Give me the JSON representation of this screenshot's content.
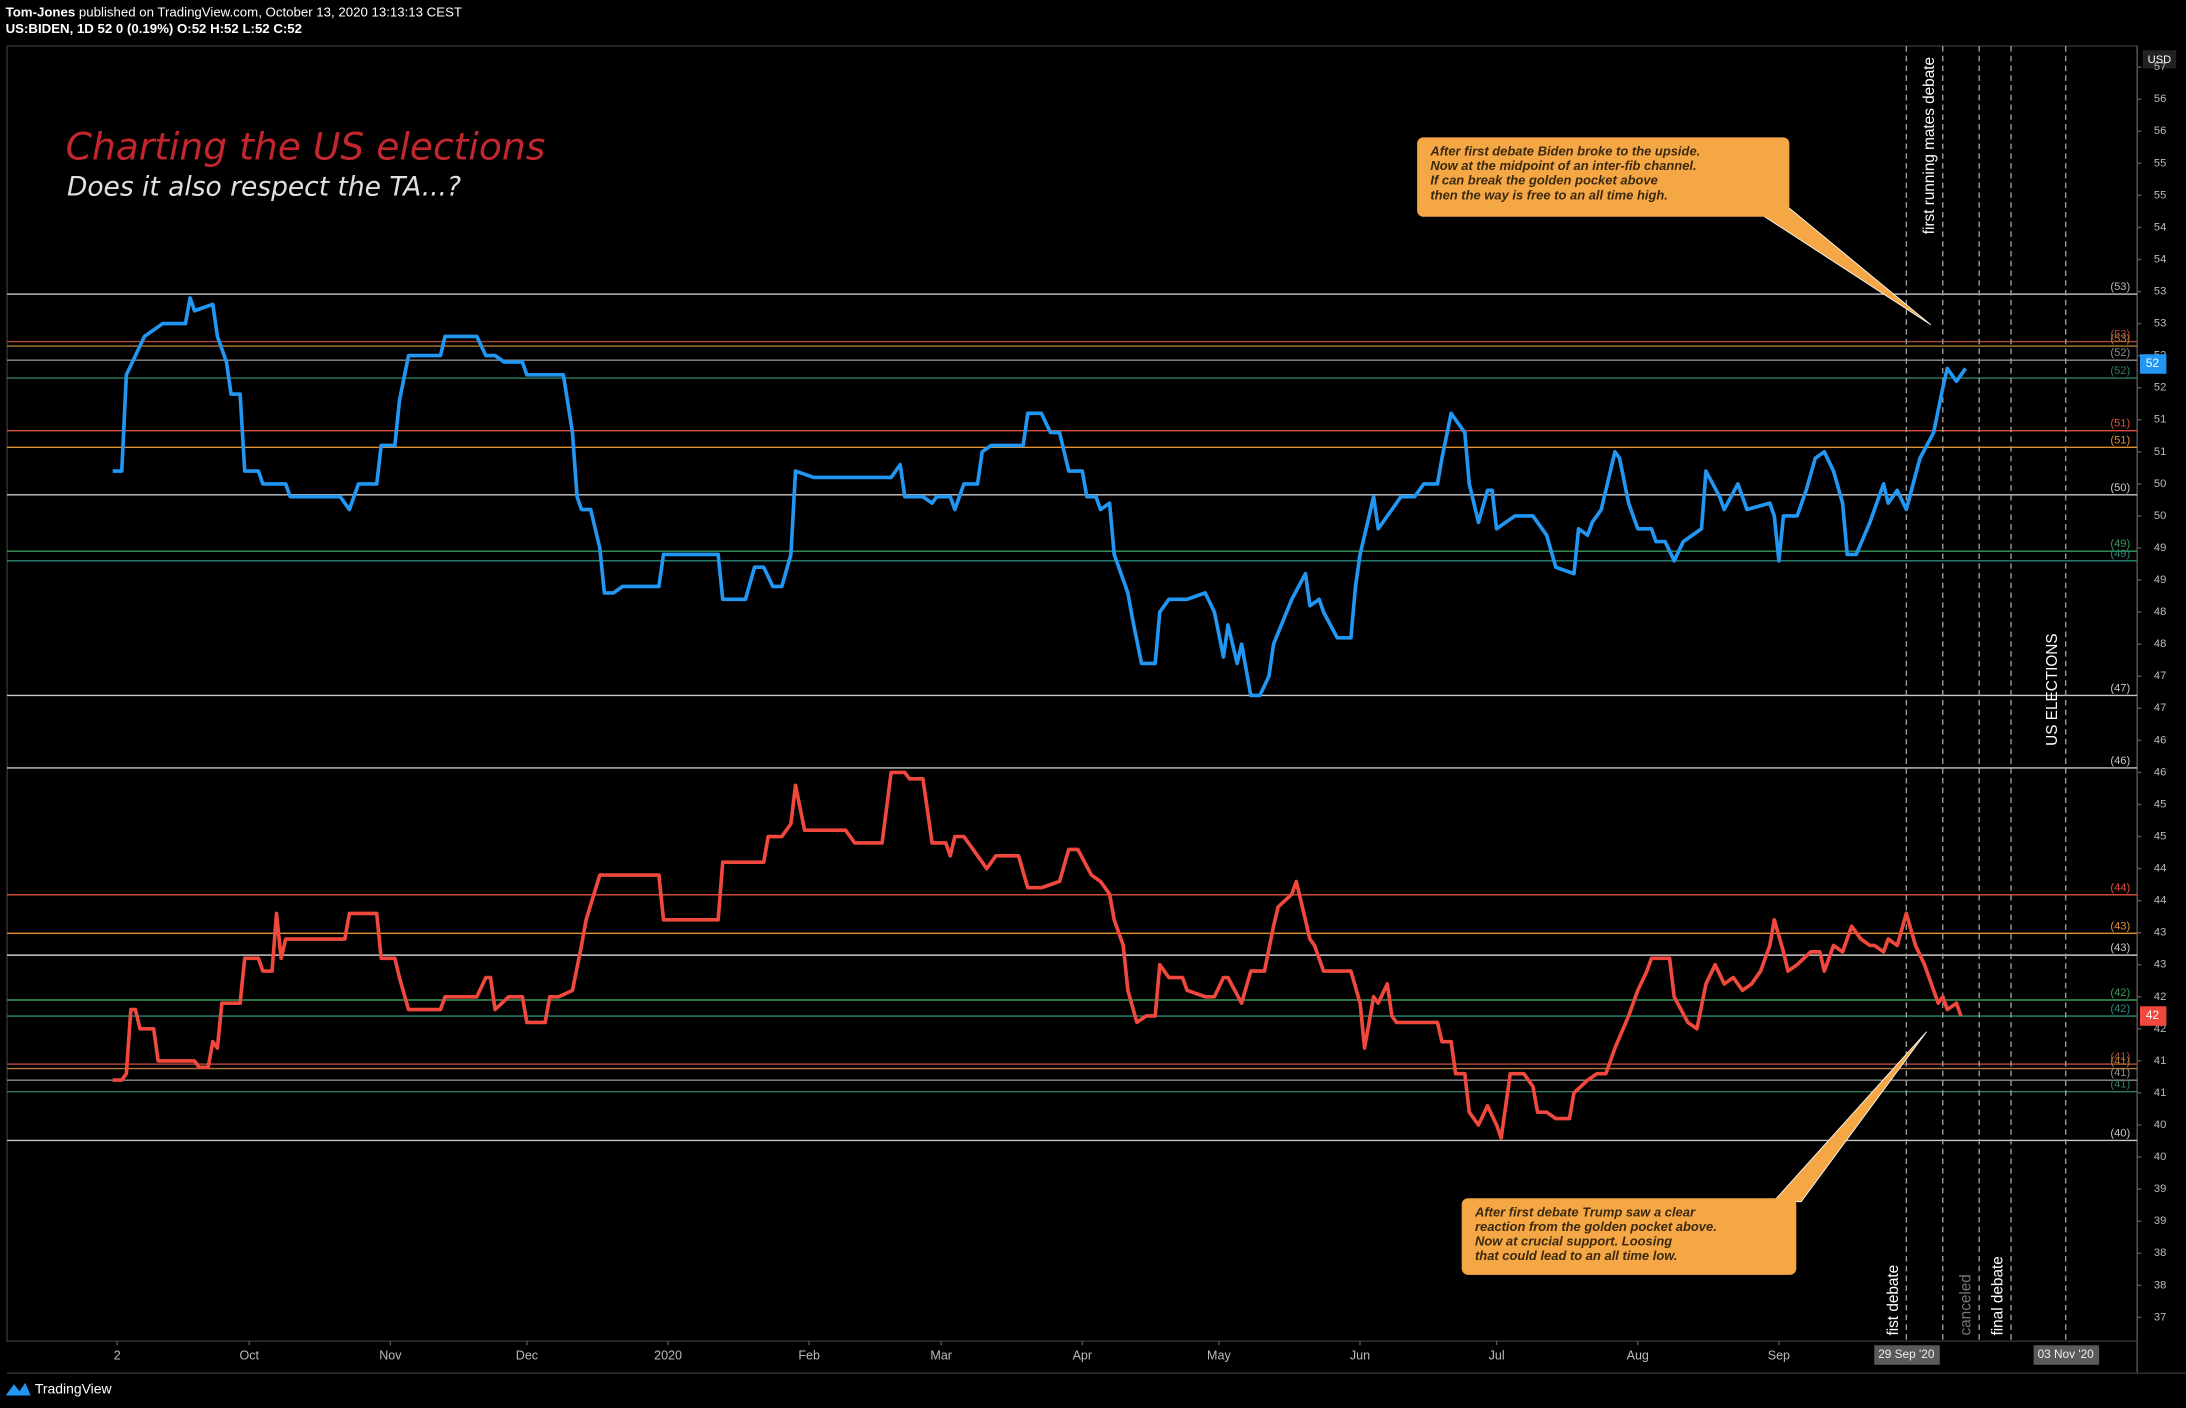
{
  "chart_data": {
    "type": "line",
    "header": {
      "author": "Tom-Jones",
      "published": "published on TradingView.com, October 13, 2020 13:13:13 CEST",
      "symbol": "US:BIDEN, 1D  52  0 (0.19%)  O:52 H:52 L:52 C:52"
    },
    "title": "Charting the US elections",
    "subtitle": "Does it also respect the TA...?",
    "currency": "USD",
    "brand": "TradingView",
    "xlim": [
      -24.2,
      443.7
    ],
    "xticks": [
      {
        "value": 0,
        "label": "2"
      },
      {
        "value": 29,
        "label": "Oct"
      },
      {
        "value": 60,
        "label": "Nov"
      },
      {
        "value": 90,
        "label": "Dec"
      },
      {
        "value": 121,
        "label": "2020"
      },
      {
        "value": 152,
        "label": "Feb"
      },
      {
        "value": 181,
        "label": "Mar"
      },
      {
        "value": 212,
        "label": "Apr"
      },
      {
        "value": 242,
        "label": "May"
      },
      {
        "value": 273,
        "label": "Jun"
      },
      {
        "value": 303,
        "label": "Jul"
      },
      {
        "value": 334,
        "label": "Aug"
      },
      {
        "value": 365,
        "label": "Sep"
      }
    ],
    "ylim": [
      37.13,
      57.33
    ],
    "yticks": [
      57,
      {
        "value": 56.5,
        "label": "56"
      },
      56,
      {
        "value": 55.5,
        "label": "55"
      },
      55,
      {
        "value": 54.5,
        "label": "54"
      },
      54,
      {
        "value": 53.5,
        "label": "53"
      },
      53,
      {
        "value": 52.5,
        "label": "52"
      },
      52,
      {
        "value": 51.5,
        "label": "51"
      },
      51,
      {
        "value": 50.5,
        "label": "50"
      },
      50,
      {
        "value": 49.5,
        "label": "49"
      },
      49,
      {
        "value": 48.5,
        "label": "48"
      },
      48,
      {
        "value": 47.5,
        "label": "47"
      },
      47,
      {
        "value": 46.5,
        "label": "46"
      },
      46,
      {
        "value": 45.5,
        "label": "45"
      },
      45,
      {
        "value": 44.5,
        "label": "44"
      },
      44,
      {
        "value": 43.5,
        "label": "43"
      },
      43,
      {
        "value": 42.5,
        "label": "42"
      },
      42,
      {
        "value": 41.5,
        "label": "41"
      },
      41,
      {
        "value": 40.5,
        "label": "40"
      },
      40,
      {
        "value": 39.5,
        "label": "39"
      },
      39,
      {
        "value": 38.5,
        "label": "38"
      },
      38,
      {
        "value": 37.5,
        "label": "37"
      }
    ],
    "series": [
      {
        "color": "#2196f3",
        "x": [
          -1,
          1,
          2,
          6,
          10,
          15,
          16,
          17,
          21,
          22,
          24,
          25,
          27,
          28,
          31,
          32,
          37,
          38,
          49,
          51,
          53,
          57,
          58,
          61,
          62,
          64,
          71,
          72,
          79,
          81,
          83,
          85,
          89,
          90,
          94,
          95,
          98,
          100,
          101,
          102,
          104,
          106,
          107,
          109,
          111,
          119,
          120,
          132,
          133,
          138,
          140,
          142,
          144,
          146,
          148,
          149,
          153,
          170,
          172,
          173,
          177,
          179,
          180,
          183,
          184,
          186,
          189,
          190,
          192,
          199,
          200,
          203,
          205,
          207,
          209,
          212,
          213,
          215,
          216,
          218,
          219,
          222,
          223,
          225,
          228,
          229,
          231,
          235,
          239,
          241,
          243,
          244,
          246,
          247,
          249,
          251,
          253,
          254,
          258,
          261,
          262,
          264,
          265,
          268,
          271,
          272,
          273,
          276,
          277,
          280,
          282,
          285,
          287,
          290,
          291,
          293,
          294,
          296,
          297,
          299,
          301,
          302,
          303,
          307,
          311,
          314,
          316,
          320,
          321,
          323,
          324,
          326,
          329,
          330,
          332,
          334,
          337,
          338,
          340,
          342,
          344,
          348,
          349,
          352,
          353,
          356,
          358,
          363,
          364,
          365,
          366,
          369,
          371,
          373,
          375,
          377,
          379,
          380,
          382,
          385,
          388,
          389,
          391,
          393,
          396,
          399,
          401,
          402,
          404,
          406
        ],
        "values": [
          50.7,
          50.7,
          52.2,
          52.8,
          53.0,
          53.0,
          53.4,
          53.2,
          53.3,
          52.8,
          52.4,
          51.9,
          51.9,
          50.7,
          50.7,
          50.5,
          50.5,
          50.3,
          50.3,
          50.1,
          50.5,
          50.5,
          51.1,
          51.1,
          51.8,
          52.5,
          52.5,
          52.8,
          52.8,
          52.5,
          52.5,
          52.4,
          52.4,
          52.2,
          52.2,
          52.2,
          52.2,
          51.3,
          50.3,
          50.1,
          50.1,
          49.5,
          48.8,
          48.8,
          48.9,
          48.9,
          49.4,
          49.4,
          48.7,
          48.7,
          49.2,
          49.2,
          48.9,
          48.9,
          49.4,
          50.7,
          50.6,
          50.6,
          50.8,
          50.3,
          50.3,
          50.2,
          50.3,
          50.3,
          50.1,
          50.5,
          50.5,
          51.0,
          51.1,
          51.1,
          51.6,
          51.6,
          51.3,
          51.3,
          50.7,
          50.7,
          50.3,
          50.3,
          50.1,
          50.2,
          49.4,
          48.8,
          48.4,
          47.7,
          47.7,
          48.5,
          48.7,
          48.7,
          48.8,
          48.5,
          47.8,
          48.3,
          47.7,
          48.0,
          47.2,
          47.2,
          47.5,
          48.0,
          48.7,
          49.1,
          48.6,
          48.7,
          48.5,
          48.1,
          48.1,
          48.9,
          49.4,
          50.3,
          49.8,
          50.1,
          50.3,
          50.3,
          50.5,
          50.5,
          50.9,
          51.6,
          51.5,
          51.3,
          50.5,
          49.9,
          50.4,
          50.4,
          49.8,
          50.0,
          50.0,
          49.7,
          49.2,
          49.1,
          49.8,
          49.7,
          49.9,
          50.1,
          51.0,
          50.9,
          50.2,
          49.8,
          49.8,
          49.6,
          49.6,
          49.3,
          49.6,
          49.8,
          50.7,
          50.3,
          50.1,
          50.5,
          50.1,
          50.2,
          50.0,
          49.3,
          50.0,
          50.0,
          50.4,
          50.9,
          51.0,
          50.7,
          50.2,
          49.4,
          49.4,
          49.9,
          50.5,
          50.2,
          50.4,
          50.1,
          50.9,
          51.3,
          52.0,
          52.3,
          52.1,
          52.3
        ]
      },
      {
        "color": "#f0483c",
        "x": [
          -1,
          1,
          2,
          3,
          4,
          5,
          8,
          9,
          17,
          18,
          20,
          21,
          22,
          23,
          27,
          28,
          31,
          32,
          34,
          35,
          36,
          37,
          50,
          51,
          57,
          58,
          61,
          62,
          64,
          71,
          72,
          79,
          81,
          82,
          83,
          86,
          89,
          90,
          94,
          95,
          97,
          100,
          102,
          103,
          106,
          119,
          120,
          132,
          133,
          142,
          143,
          146,
          148,
          149,
          151,
          160,
          162,
          168,
          170,
          173,
          174,
          177,
          179,
          182,
          183,
          184,
          186,
          188,
          191,
          193,
          198,
          200,
          203,
          207,
          209,
          211,
          214,
          216,
          218,
          219,
          221,
          222,
          224,
          226,
          228,
          229,
          231,
          234,
          235,
          239,
          241,
          243,
          244,
          247,
          249,
          252,
          254,
          255,
          258,
          259,
          260,
          262,
          263,
          265,
          271,
          273,
          274,
          276,
          277,
          279,
          280,
          281,
          290,
          291,
          293,
          294,
          296,
          297,
          299,
          301,
          303,
          304,
          306,
          309,
          311,
          312,
          314,
          316,
          319,
          320,
          323,
          325,
          327,
          329,
          332,
          334,
          336,
          337,
          341,
          342,
          345,
          347,
          349,
          351,
          353,
          355,
          357,
          359,
          361,
          363,
          364,
          366,
          367,
          369,
          372,
          374,
          375,
          377,
          379,
          381,
          383,
          385,
          386,
          388,
          389,
          391,
          393,
          395,
          397,
          399,
          400,
          401,
          402,
          404,
          405
        ],
        "values": [
          41.2,
          41.2,
          41.3,
          42.3,
          42.3,
          42.0,
          42.0,
          41.5,
          41.5,
          41.4,
          41.4,
          41.8,
          41.7,
          42.4,
          42.4,
          43.1,
          43.1,
          42.9,
          42.9,
          43.8,
          43.1,
          43.4,
          43.4,
          43.8,
          43.8,
          43.1,
          43.1,
          42.8,
          42.3,
          42.3,
          42.5,
          42.5,
          42.8,
          42.8,
          42.3,
          42.5,
          42.5,
          42.1,
          42.1,
          42.5,
          42.5,
          42.6,
          43.3,
          43.7,
          44.4,
          44.4,
          43.7,
          43.7,
          44.6,
          44.6,
          45.0,
          45.0,
          45.2,
          45.8,
          45.1,
          45.1,
          44.9,
          44.9,
          46.0,
          46.0,
          45.9,
          45.9,
          44.9,
          44.9,
          44.7,
          45.0,
          45.0,
          44.8,
          44.5,
          44.7,
          44.7,
          44.2,
          44.2,
          44.3,
          44.8,
          44.8,
          44.4,
          44.3,
          44.1,
          43.7,
          43.3,
          42.6,
          42.1,
          42.2,
          42.2,
          43.0,
          42.8,
          42.8,
          42.6,
          42.5,
          42.5,
          42.8,
          42.8,
          42.4,
          42.9,
          42.9,
          43.6,
          43.9,
          44.1,
          44.3,
          44.0,
          43.4,
          43.3,
          42.9,
          42.9,
          42.4,
          41.7,
          42.5,
          42.4,
          42.7,
          42.2,
          42.1,
          42.1,
          41.8,
          41.8,
          41.3,
          41.3,
          40.7,
          40.5,
          40.8,
          40.5,
          40.3,
          41.3,
          41.3,
          41.1,
          40.7,
          40.7,
          40.6,
          40.6,
          41.0,
          41.2,
          41.3,
          41.3,
          41.7,
          42.2,
          42.6,
          42.9,
          43.1,
          43.1,
          42.5,
          42.1,
          42.0,
          42.7,
          43.0,
          42.7,
          42.8,
          42.6,
          42.7,
          42.9,
          43.3,
          43.7,
          43.2,
          42.9,
          43.0,
          43.2,
          43.2,
          42.9,
          43.3,
          43.2,
          43.6,
          43.4,
          43.3,
          43.3,
          43.2,
          43.4,
          43.3,
          43.8,
          43.3,
          43.0,
          42.6,
          42.4,
          42.5,
          42.3,
          42.4,
          42.2
        ]
      }
    ],
    "levels": [
      {
        "value": 53.46,
        "label": "(53)",
        "color": "#b5b5b5"
      },
      {
        "value": 52.72,
        "label": "(53)",
        "color": "#a8473a"
      },
      {
        "value": 52.65,
        "label": "(53)",
        "color": "#b07a30"
      },
      {
        "value": 52.43,
        "label": "(52)",
        "color": "#8f8f8f"
      },
      {
        "value": 52.15,
        "label": "(52)",
        "color": "#2f7d5c"
      },
      {
        "value": 51.33,
        "label": "(51)",
        "color": "#e0503a"
      },
      {
        "value": 51.07,
        "label": "(51)",
        "color": "#e09030"
      },
      {
        "value": 50.33,
        "label": "(50)",
        "color": "#c8c8c8"
      },
      {
        "value": 49.45,
        "label": "(49)",
        "color": "#3c9a5c"
      },
      {
        "value": 49.3,
        "label": "(49)",
        "color": "#2a8a7a"
      },
      {
        "value": 47.2,
        "label": "(47)",
        "color": "#c8c8c8"
      },
      {
        "value": 46.07,
        "label": "(46)",
        "color": "#c8c8c8"
      },
      {
        "value": 44.09,
        "label": "(44)",
        "color": "#e0503a"
      },
      {
        "value": 43.49,
        "label": "(43)",
        "color": "#e09030"
      },
      {
        "value": 43.15,
        "label": "(43)",
        "color": "#c8c8c8"
      },
      {
        "value": 42.45,
        "label": "(42)",
        "color": "#3c9a5c"
      },
      {
        "value": 42.2,
        "label": "(42)",
        "color": "#2a8a7a"
      },
      {
        "value": 41.45,
        "label": "(41)",
        "color": "#a8473a"
      },
      {
        "value": 41.38,
        "label": "(41)",
        "color": "#b07a30"
      },
      {
        "value": 41.2,
        "label": "(41)",
        "color": "#8f8f8f"
      },
      {
        "value": 41.02,
        "label": "(41)",
        "color": "#2f7d5c"
      },
      {
        "value": 40.26,
        "label": "(40)",
        "color": "#c8c8c8"
      }
    ],
    "price_tags": [
      {
        "value": 52.37,
        "label": "52",
        "color": "#2196f3"
      },
      {
        "value": 42.2,
        "label": "42",
        "color": "#f0483c"
      }
    ],
    "events": [
      {
        "x": 393,
        "label": "fist debate",
        "color": "#ffffff",
        "date": "29 Sep '20"
      },
      {
        "x": 401,
        "label": "first running mates debate",
        "color": "#ffffff"
      },
      {
        "x": 409,
        "label": "canceled",
        "color": "#777777"
      },
      {
        "x": 416,
        "label": "final debate",
        "color": "#ffffff"
      },
      {
        "x": 428,
        "label": "US ELECTIONS",
        "color": "#ffffff",
        "date": "03 Nov '20"
      }
    ],
    "annotations": [
      {
        "lines": [
          "After first debate Biden broke to the upside.",
          "Now at the midpoint of an inter-fib channel.",
          "If can break the golden pocket above",
          "then the way is free to an all time high."
        ]
      },
      {
        "lines": [
          "After first debate Trump saw a clear",
          "reaction from the golden pocket above.",
          "Now at crucial support. Loosing",
          "that could lead to an all time low."
        ]
      }
    ]
  }
}
